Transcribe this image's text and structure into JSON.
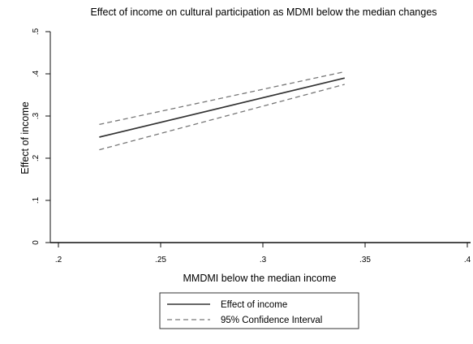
{
  "chart_data": {
    "type": "line",
    "title": "Effect of  income on cultural participation as MDMI below the median changes",
    "xlabel": "MMDMI below the median income",
    "ylabel": "Effect of income",
    "xlim": [
      0.2,
      0.4
    ],
    "ylim": [
      0,
      0.5
    ],
    "x_ticks": [
      ".2",
      ".25",
      ".3",
      ".35",
      ".4"
    ],
    "y_ticks": [
      "0",
      ".1",
      ".2",
      ".3",
      ".4",
      ".5"
    ],
    "grid": false,
    "legend_position": "bottom",
    "series": [
      {
        "name": "Effect of income",
        "style": "solid",
        "x": [
          0.22,
          0.34
        ],
        "y": [
          0.25,
          0.39
        ]
      },
      {
        "name": "95% Confidence Interval",
        "style": "dashed",
        "x": [
          0.22,
          0.34
        ],
        "y": [
          0.28,
          0.405
        ]
      },
      {
        "name": "",
        "style": "dashed",
        "x": [
          0.22,
          0.34
        ],
        "y": [
          0.22,
          0.375
        ]
      }
    ],
    "colors": {
      "line": "#333333",
      "ci": "#777777",
      "axis": "#111111"
    }
  }
}
